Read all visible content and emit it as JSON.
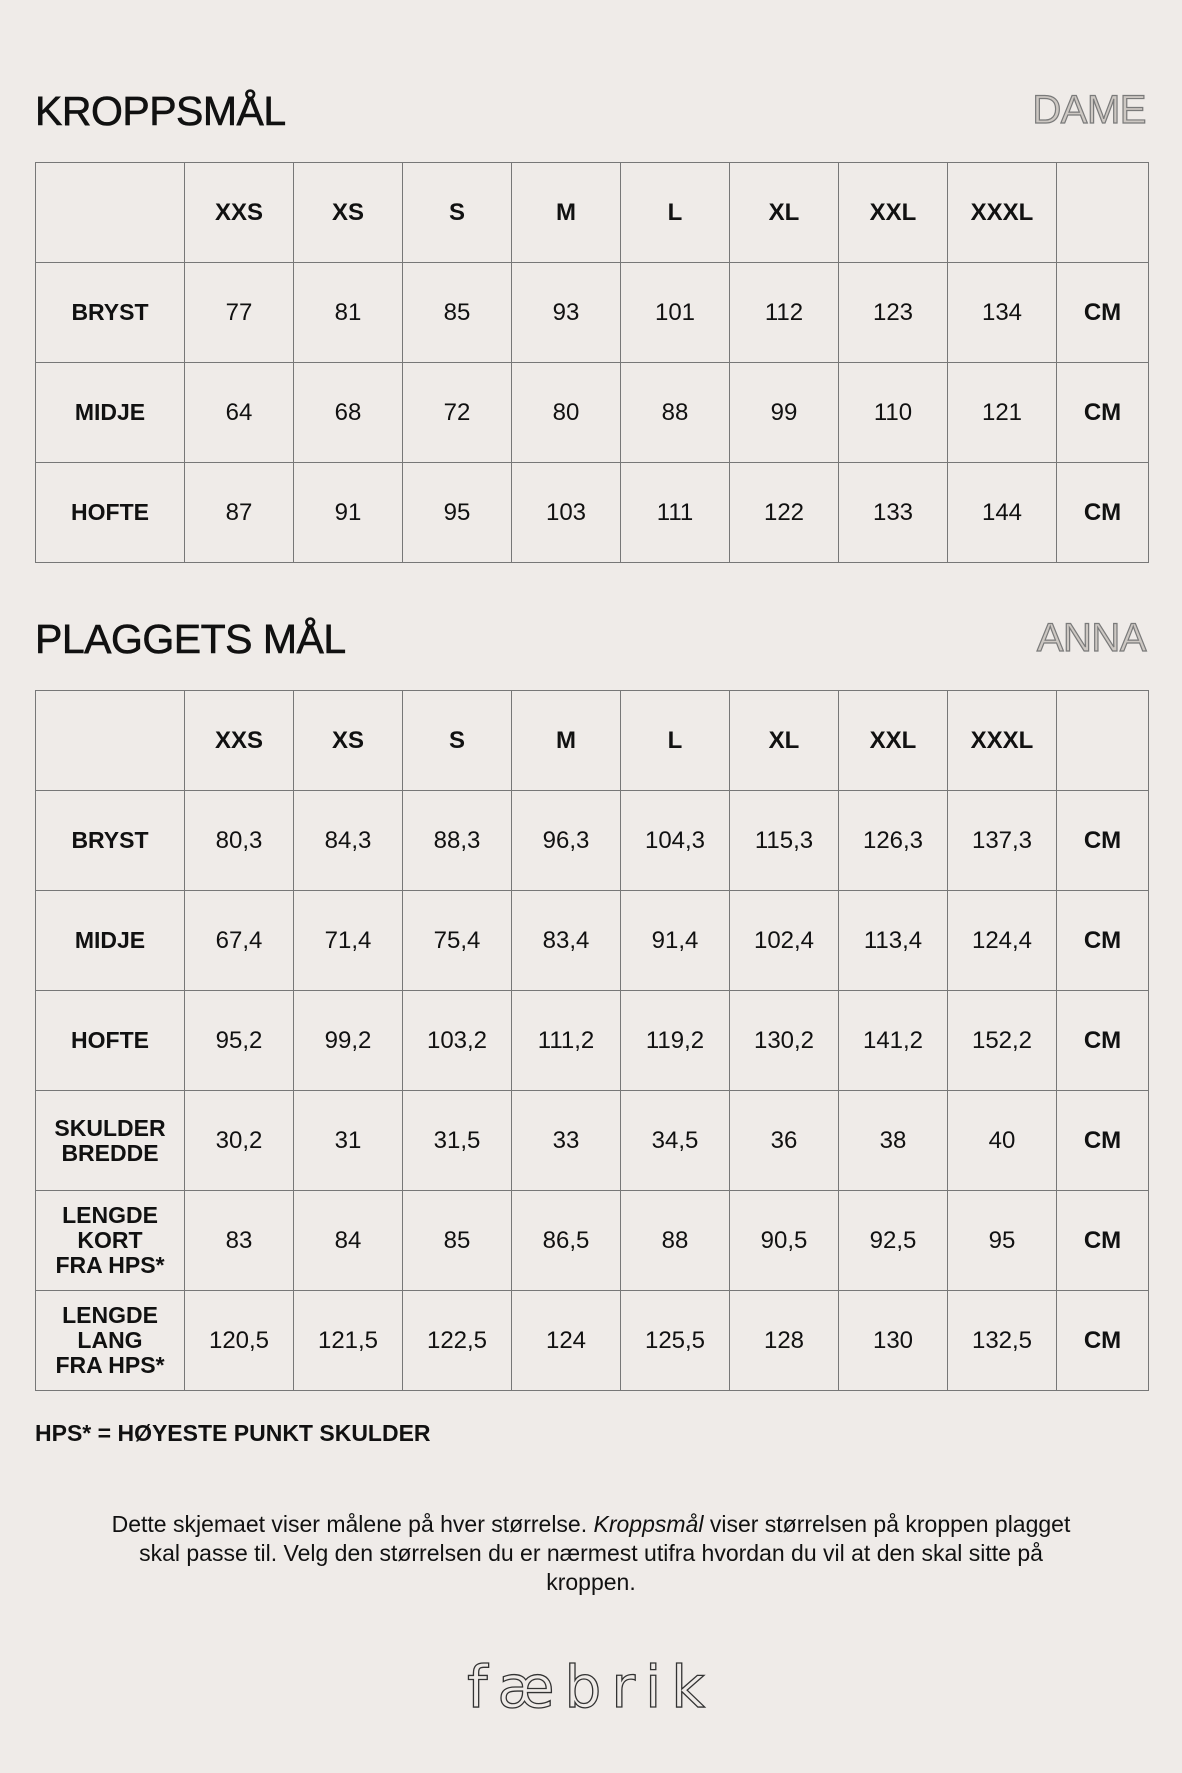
{
  "body_section": {
    "title": "KROPPSMÅL",
    "tag": "DAME",
    "sizes": [
      "XXS",
      "XS",
      "S",
      "M",
      "L",
      "XL",
      "XXL",
      "XXXL"
    ],
    "rows": [
      {
        "label": "BRYST",
        "values": [
          "77",
          "81",
          "85",
          "93",
          "101",
          "112",
          "123",
          "134"
        ],
        "unit": "CM"
      },
      {
        "label": "MIDJE",
        "values": [
          "64",
          "68",
          "72",
          "80",
          "88",
          "99",
          "110",
          "121"
        ],
        "unit": "CM"
      },
      {
        "label": "HOFTE",
        "values": [
          "87",
          "91",
          "95",
          "103",
          "111",
          "122",
          "133",
          "144"
        ],
        "unit": "CM"
      }
    ]
  },
  "garment_section": {
    "title": "PLAGGETS MÅL",
    "tag": "ANNA",
    "sizes": [
      "XXS",
      "XS",
      "S",
      "M",
      "L",
      "XL",
      "XXL",
      "XXXL"
    ],
    "rows": [
      {
        "label": "BRYST",
        "values": [
          "80,3",
          "84,3",
          "88,3",
          "96,3",
          "104,3",
          "115,3",
          "126,3",
          "137,3"
        ],
        "unit": "CM"
      },
      {
        "label": "MIDJE",
        "values": [
          "67,4",
          "71,4",
          "75,4",
          "83,4",
          "91,4",
          "102,4",
          "113,4",
          "124,4"
        ],
        "unit": "CM"
      },
      {
        "label": "HOFTE",
        "values": [
          "95,2",
          "99,2",
          "103,2",
          "111,2",
          "119,2",
          "130,2",
          "141,2",
          "152,2"
        ],
        "unit": "CM"
      },
      {
        "label": "SKULDER\nBREDDE",
        "values": [
          "30,2",
          "31",
          "31,5",
          "33",
          "34,5",
          "36",
          "38",
          "40"
        ],
        "unit": "CM"
      },
      {
        "label": "LENGDE\nKORT\nFRA HPS*",
        "values": [
          "83",
          "84",
          "85",
          "86,5",
          "88",
          "90,5",
          "92,5",
          "95"
        ],
        "unit": "CM"
      },
      {
        "label": "LENGDE\nLANG\nFRA HPS*",
        "values": [
          "120,5",
          "121,5",
          "122,5",
          "124",
          "125,5",
          "128",
          "130",
          "132,5"
        ],
        "unit": "CM"
      }
    ]
  },
  "footnote": "HPS* = HØYESTE PUNKT SKULDER",
  "description": {
    "before": "Dette skjemaet viser målene på hver størrelse. ",
    "emphasis": "Kroppsmål",
    "after": " viser størrelsen på kroppen plagget skal passe til. Velg den størrelsen du er nærmest utifra hvordan du vil at den skal sitte på kroppen."
  },
  "logo_text": "fæbrik"
}
